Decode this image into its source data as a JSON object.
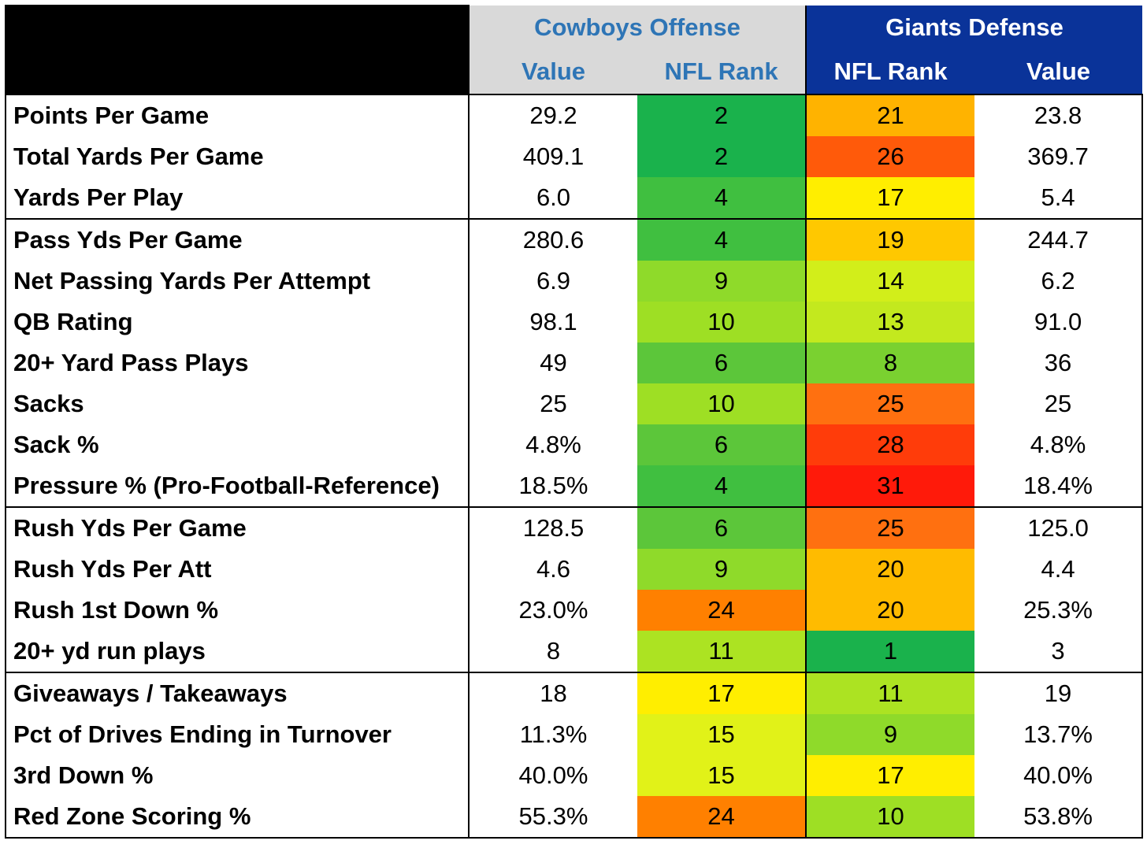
{
  "colors": {
    "offense_header_bg": "#d9d9d9",
    "offense_header_text": "#2e75b6",
    "defense_header_bg": "#0a3399",
    "defense_header_text": "#ffffff"
  },
  "header": {
    "offense_title": "Cowboys Offense",
    "defense_title": "Giants Defense",
    "offense_value_label": "Value",
    "offense_rank_label": "NFL Rank",
    "defense_rank_label": "NFL Rank",
    "defense_value_label": "Value"
  },
  "rows": [
    {
      "stat": "Points Per Game",
      "off_value": "29.2",
      "off_rank": "2",
      "off_color": "#1ab24c",
      "def_rank": "21",
      "def_color": "#ffb300",
      "def_value": "23.8"
    },
    {
      "stat": "Total Yards Per Game",
      "off_value": "409.1",
      "off_rank": "2",
      "off_color": "#1ab24c",
      "def_rank": "26",
      "def_color": "#ff5a0a",
      "def_value": "369.7"
    },
    {
      "stat": "Yards Per Play",
      "off_value": "6.0",
      "off_rank": "4",
      "off_color": "#40bf40",
      "def_rank": "17",
      "def_color": "#ffee00",
      "def_value": "5.4"
    },
    {
      "stat": "Pass Yds Per Game",
      "off_value": "280.6",
      "off_rank": "4",
      "off_color": "#40bf40",
      "def_rank": "19",
      "def_color": "#ffc800",
      "def_value": "244.7"
    },
    {
      "stat": "Net Passing Yards Per Attempt",
      "off_value": "6.9",
      "off_rank": "9",
      "off_color": "#8fda2a",
      "def_rank": "14",
      "def_color": "#d2ee1a",
      "def_value": "6.2"
    },
    {
      "stat": "QB Rating",
      "off_value": "98.1",
      "off_rank": "10",
      "off_color": "#9edf24",
      "def_rank": "13",
      "def_color": "#c3e91e",
      "def_value": "91.0"
    },
    {
      "stat": "20+ Yard Pass Plays",
      "off_value": "49",
      "off_rank": "6",
      "off_color": "#5cc63a",
      "def_rank": "8",
      "def_color": "#7ad130",
      "def_value": "36"
    },
    {
      "stat": "Sacks",
      "off_value": "25",
      "off_rank": "10",
      "off_color": "#9edf24",
      "def_rank": "25",
      "def_color": "#ff7010",
      "def_value": "25"
    },
    {
      "stat": "Sack %",
      "off_value": "4.8%",
      "off_rank": "6",
      "off_color": "#5cc63a",
      "def_rank": "28",
      "def_color": "#ff3c0a",
      "def_value": "4.8%"
    },
    {
      "stat": "Pressure % (Pro-Football-Reference)",
      "off_value": "18.5%",
      "off_rank": "4",
      "off_color": "#40bf40",
      "def_rank": "31",
      "def_color": "#ff1a0a",
      "def_value": "18.4%"
    },
    {
      "stat": "Rush Yds Per Game",
      "off_value": "128.5",
      "off_rank": "6",
      "off_color": "#5cc63a",
      "def_rank": "25",
      "def_color": "#ff7010",
      "def_value": "125.0"
    },
    {
      "stat": "Rush Yds Per Att",
      "off_value": "4.6",
      "off_rank": "9",
      "off_color": "#8fda2a",
      "def_rank": "20",
      "def_color": "#ffbb00",
      "def_value": "4.4"
    },
    {
      "stat": "Rush 1st Down %",
      "off_value": "23.0%",
      "off_rank": "24",
      "off_color": "#ff8000",
      "def_rank": "20",
      "def_color": "#ffbb00",
      "def_value": "25.3%"
    },
    {
      "stat": "20+ yd run plays",
      "off_value": "8",
      "off_rank": "11",
      "off_color": "#ace322",
      "def_rank": "1",
      "def_color": "#1ab24c",
      "def_value": "3"
    },
    {
      "stat": "Giveaways / Takeaways",
      "off_value": "18",
      "off_rank": "17",
      "off_color": "#ffee00",
      "def_rank": "11",
      "def_color": "#ace322",
      "def_value": "19"
    },
    {
      "stat": "Pct of Drives Ending in Turnover",
      "off_value": "11.3%",
      "off_rank": "15",
      "off_color": "#e1f218",
      "def_rank": "9",
      "def_color": "#8fda2a",
      "def_value": "13.7%"
    },
    {
      "stat": "3rd Down %",
      "off_value": "40.0%",
      "off_rank": "15",
      "off_color": "#e1f218",
      "def_rank": "17",
      "def_color": "#ffee00",
      "def_value": "40.0%"
    },
    {
      "stat": "Red Zone Scoring %",
      "off_value": "55.3%",
      "off_rank": "24",
      "off_color": "#ff8000",
      "def_rank": "10",
      "def_color": "#9edf24",
      "def_value": "53.8%"
    }
  ]
}
